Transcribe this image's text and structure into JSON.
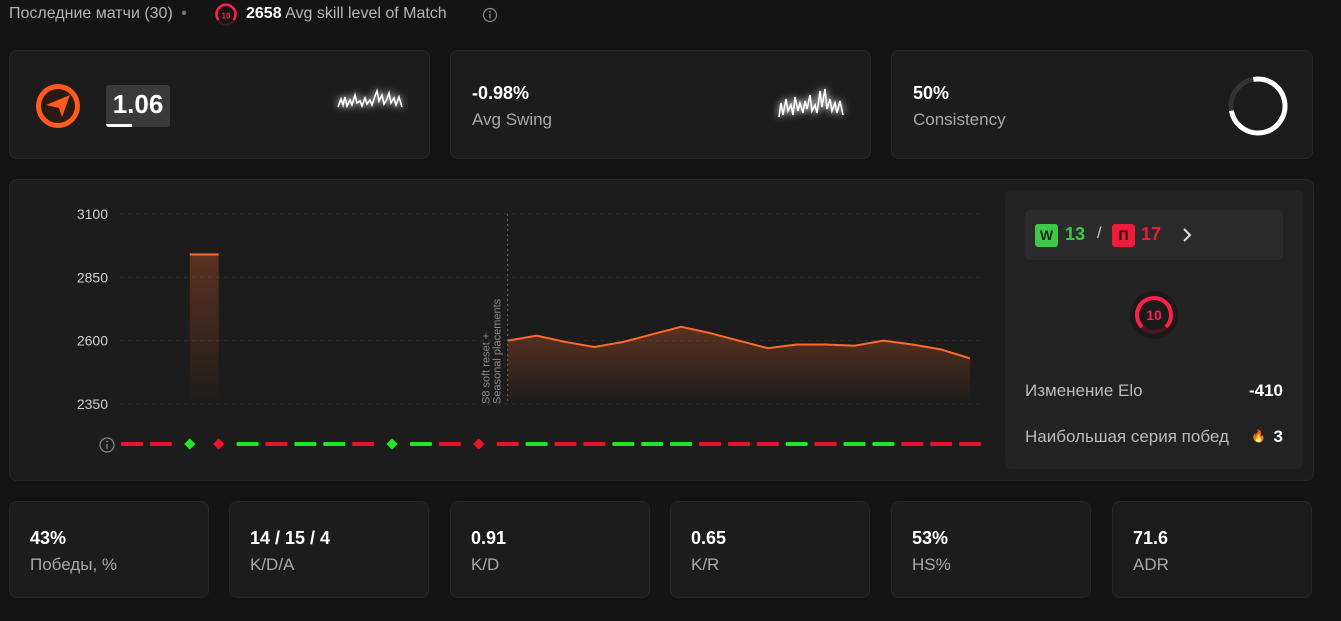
{
  "header": {
    "title": "Последние матчи (30)",
    "separator": "•",
    "level": "10",
    "avg_elo": "2658",
    "avg_label": "Avg skill level of Match"
  },
  "cards": [
    {
      "value": "1.06"
    },
    {
      "value": "-0.98%",
      "label": "Avg Swing"
    },
    {
      "value": "50%",
      "label": "Consistency"
    }
  ],
  "chart_data": {
    "type": "line",
    "annotation": [
      "S8 soft reset +",
      "Seasonal placements"
    ],
    "color": "#ff6a2b",
    "ylim": [
      2350,
      3100
    ],
    "yticks": [
      2350,
      2600,
      2850,
      3100
    ],
    "grid": true,
    "values": [
      null,
      null,
      2940,
      2940,
      null,
      null,
      null,
      null,
      null,
      null,
      null,
      null,
      null,
      2600,
      2620,
      2595,
      2575,
      2595,
      2625,
      2655,
      2630,
      2600,
      2570,
      2585,
      2585,
      2580,
      2600,
      2585,
      2565,
      2530
    ]
  },
  "record": {
    "wins_badge": "W",
    "wins": "13",
    "sep": "/",
    "losses_badge": "П",
    "losses": "17"
  },
  "level_badge": "10",
  "elo_change": {
    "label": "Изменение Elo",
    "value": "-410"
  },
  "streak": {
    "label": "Наибольшая серия побед",
    "icon": "🔥",
    "value": "3"
  },
  "stats": [
    {
      "value": "43%",
      "label": "Победы, %"
    },
    {
      "value": "14 / 15 / 4",
      "label": "K/D/A"
    },
    {
      "value": "0.91",
      "label": "K/D"
    },
    {
      "value": "0.65",
      "label": "K/R"
    },
    {
      "value": "53%",
      "label": "HS%"
    },
    {
      "value": "71.6",
      "label": "ADR"
    }
  ]
}
